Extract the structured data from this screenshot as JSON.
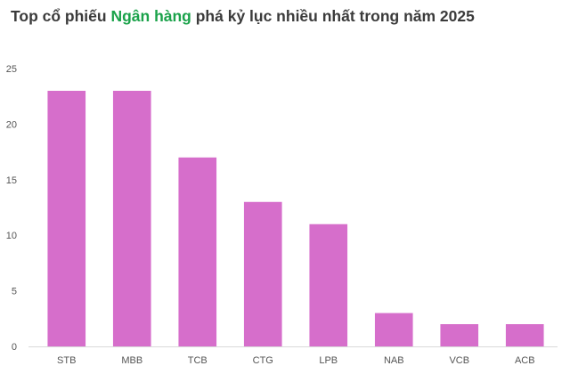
{
  "chart_data": {
    "type": "bar",
    "title_prefix": "Top cổ phiếu ",
    "title_highlight": "Ngân hàng",
    "title_suffix": " phá kỷ lục nhiều nhất trong năm 2025",
    "categories": [
      "STB",
      "MBB",
      "TCB",
      "CTG",
      "LPB",
      "NAB",
      "VCB",
      "ACB"
    ],
    "values": [
      23,
      23,
      17,
      13,
      11,
      3,
      2,
      2
    ],
    "ylim": [
      0,
      25
    ],
    "yticks": [
      "0",
      "5",
      "10",
      "15",
      "20",
      "25"
    ],
    "xlabel": "",
    "ylabel": "",
    "grid": false,
    "legend": "none"
  },
  "colors": {
    "bar": "#d66ecb",
    "title_highlight": "#1aa24a",
    "title_text": "#3b3b3b",
    "axis": "#d9d9d9",
    "tick_text": "#555555"
  }
}
